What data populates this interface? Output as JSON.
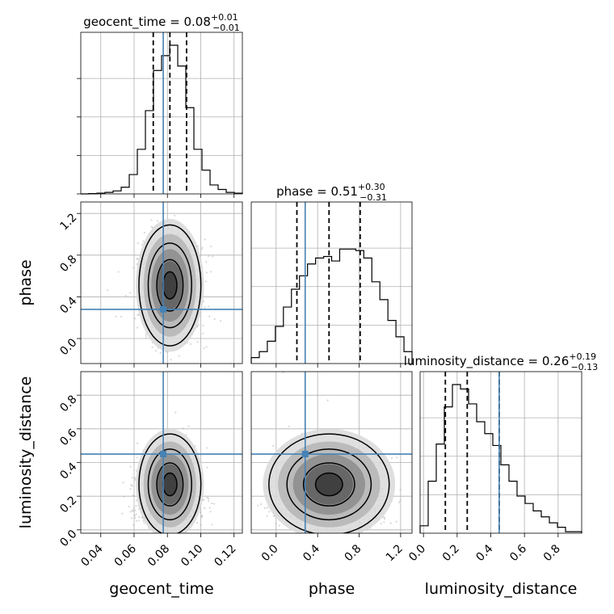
{
  "chart_data": {
    "type": "corner",
    "parameters": [
      "geocent_time",
      "phase",
      "luminosity_distance"
    ],
    "truths": [
      0.0775,
      0.28,
      0.45
    ],
    "truth_color": "#4682b4",
    "titles": [
      {
        "param": "geocent_time",
        "main": "geocent_time = 0.08",
        "sup": "+0.01",
        "sub": "−0.01"
      },
      {
        "param": "phase",
        "main": "phase = 0.51",
        "sup": "+0.30",
        "sub": "−0.31"
      },
      {
        "param": "luminosity_distance",
        "main": "luminosity_distance = 0.26",
        "sup": "+0.19",
        "sub": "−0.13"
      }
    ],
    "ranges": [
      [
        0.028,
        0.125
      ],
      [
        -0.24,
        1.31
      ],
      [
        -0.02,
        0.94
      ]
    ],
    "ticks": [
      [
        0.04,
        0.06,
        0.08,
        0.1,
        0.12
      ],
      [
        0.0,
        0.4,
        0.8,
        1.2
      ],
      [
        0.0,
        0.2,
        0.4,
        0.6,
        0.8
      ]
    ],
    "tick_labels": [
      [
        "0.04",
        "0.06",
        "0.08",
        "0.10",
        "0.12"
      ],
      [
        "0.0",
        "0.4",
        "0.8",
        "1.2"
      ],
      [
        "0.0",
        "0.2",
        "0.4",
        "0.6",
        "0.8"
      ]
    ],
    "quantiles": [
      [
        0.0715,
        0.0815,
        0.0915
      ],
      [
        0.2,
        0.51,
        0.81
      ],
      [
        0.13,
        0.26,
        0.45
      ]
    ],
    "histograms": [
      {
        "param": "geocent_time",
        "edges_range": [
          0.028,
          0.125
        ],
        "counts": [
          0.0,
          0.002,
          0.005,
          0.01,
          0.02,
          0.045,
          0.13,
          0.3,
          0.56,
          0.83,
          0.93,
          1.0,
          0.86,
          0.58,
          0.3,
          0.16,
          0.06,
          0.03,
          0.01,
          0.005
        ]
      },
      {
        "param": "phase",
        "edges_range": [
          -0.24,
          1.31
        ],
        "counts": [
          0.04,
          0.08,
          0.15,
          0.25,
          0.38,
          0.5,
          0.59,
          0.67,
          0.71,
          0.72,
          0.69,
          0.77,
          0.77,
          0.76,
          0.71,
          0.55,
          0.43,
          0.29,
          0.18,
          0.08
        ]
      },
      {
        "param": "luminosity_distance",
        "edges_range": [
          -0.02,
          0.94
        ],
        "counts": [
          0.05,
          0.35,
          0.6,
          0.85,
          1.0,
          0.97,
          0.87,
          0.75,
          0.67,
          0.59,
          0.46,
          0.35,
          0.25,
          0.2,
          0.15,
          0.11,
          0.07,
          0.04,
          0.01,
          0.01
        ]
      }
    ],
    "posterior_means": {
      "geocent_time": 0.0815,
      "phase": 0.51,
      "luminosity_distance": 0.27
    },
    "posterior_sigmas": {
      "geocent_time": 0.0093,
      "phase": 0.29,
      "luminosity_distance": 0.15
    },
    "grid": true,
    "hist_color": "#000000",
    "scatter_color": "#a9a9a9"
  }
}
